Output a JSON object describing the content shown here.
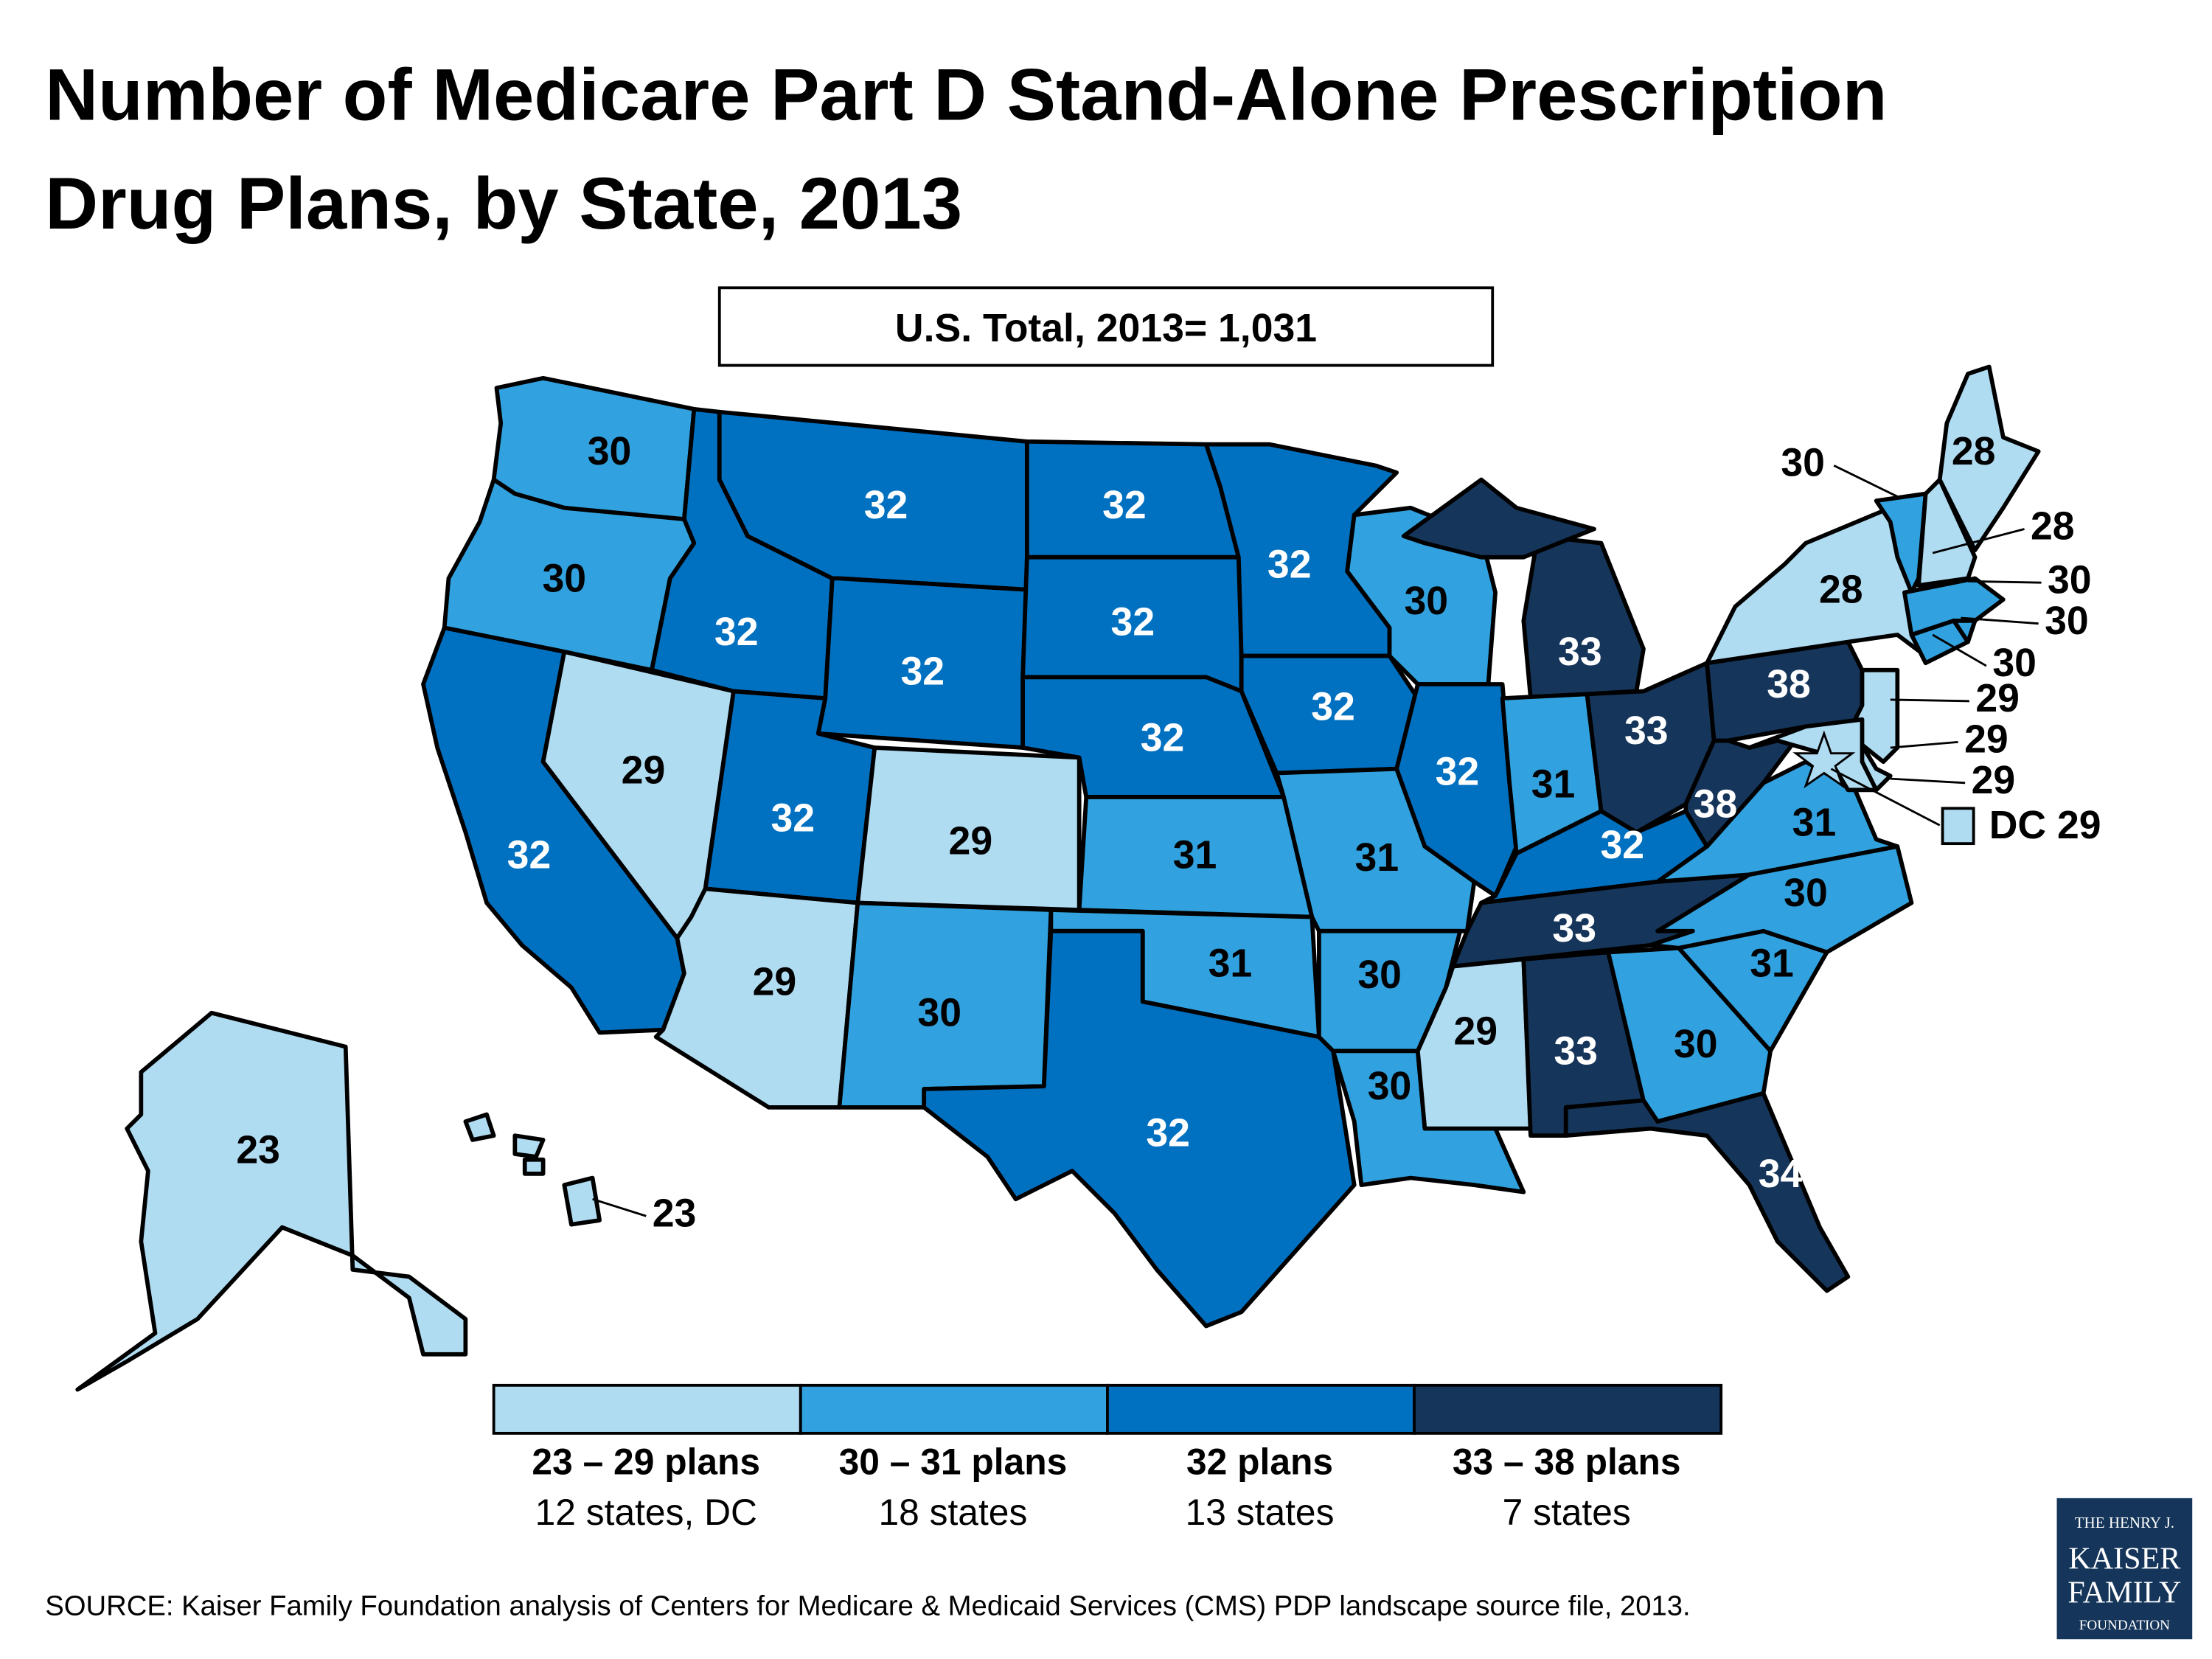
{
  "title_line1": "Number of Medicare Part D Stand-Alone Prescription",
  "title_line2": "Drug Plans, by State, 2013",
  "total_box": "U.S. Total, 2013= 1,031",
  "source": "SOURCE: Kaiser Family Foundation analysis of Centers for Medicare & Medicaid Services (CMS) PDP landscape source file, 2013.",
  "logo": {
    "line1": "THE HENRY J.",
    "line2": "KAISER",
    "line3": "FAMILY",
    "line4": "FOUNDATION",
    "color": "#15355a"
  },
  "colors": {
    "c23_29": "#b0dcf2",
    "c30_31": "#31a2df",
    "c32": "#0070c0",
    "c33_38": "#15355a"
  },
  "legend": [
    {
      "range": "23 – 29 plans",
      "count": "12 states, DC",
      "color": "#b0dcf2"
    },
    {
      "range": "30 – 31 plans",
      "count": "18 states",
      "color": "#31a2df"
    },
    {
      "range": "32 plans",
      "count": "13 states",
      "color": "#0070c0"
    },
    {
      "range": "33 – 38 plans",
      "count": "7 states",
      "color": "#15355a"
    }
  ],
  "dc_label": "DC 29",
  "chart_data": {
    "type": "choropleth",
    "title": "Number of Medicare Part D Stand-Alone Prescription Drug Plans, by State, 2013",
    "total": 1031,
    "states": [
      {
        "state": "WA",
        "value": 30
      },
      {
        "state": "OR",
        "value": 30
      },
      {
        "state": "CA",
        "value": 32
      },
      {
        "state": "NV",
        "value": 29
      },
      {
        "state": "ID",
        "value": 32
      },
      {
        "state": "MT",
        "value": 32
      },
      {
        "state": "WY",
        "value": 32
      },
      {
        "state": "UT",
        "value": 32
      },
      {
        "state": "CO",
        "value": 29
      },
      {
        "state": "AZ",
        "value": 29
      },
      {
        "state": "NM",
        "value": 30
      },
      {
        "state": "ND",
        "value": 32
      },
      {
        "state": "SD",
        "value": 32
      },
      {
        "state": "NE",
        "value": 32
      },
      {
        "state": "KS",
        "value": 31
      },
      {
        "state": "OK",
        "value": 31
      },
      {
        "state": "TX",
        "value": 32
      },
      {
        "state": "MN",
        "value": 32
      },
      {
        "state": "IA",
        "value": 32
      },
      {
        "state": "MO",
        "value": 31
      },
      {
        "state": "AR",
        "value": 30
      },
      {
        "state": "LA",
        "value": 30
      },
      {
        "state": "WI",
        "value": 30
      },
      {
        "state": "IL",
        "value": 32
      },
      {
        "state": "MI",
        "value": 33
      },
      {
        "state": "IN",
        "value": 31
      },
      {
        "state": "OH",
        "value": 33
      },
      {
        "state": "KY",
        "value": 32
      },
      {
        "state": "TN",
        "value": 33
      },
      {
        "state": "MS",
        "value": 29
      },
      {
        "state": "AL",
        "value": 33
      },
      {
        "state": "GA",
        "value": 30
      },
      {
        "state": "FL",
        "value": 34
      },
      {
        "state": "SC",
        "value": 31
      },
      {
        "state": "NC",
        "value": 30
      },
      {
        "state": "VA",
        "value": 31
      },
      {
        "state": "WV",
        "value": 38
      },
      {
        "state": "PA",
        "value": 38
      },
      {
        "state": "NY",
        "value": 28
      },
      {
        "state": "VT",
        "value": 30
      },
      {
        "state": "NH",
        "value": 28
      },
      {
        "state": "ME",
        "value": 28
      },
      {
        "state": "MA",
        "value": 30
      },
      {
        "state": "CT",
        "value": 30
      },
      {
        "state": "RI",
        "value": 30
      },
      {
        "state": "NJ",
        "value": 29
      },
      {
        "state": "DE",
        "value": 29
      },
      {
        "state": "MD",
        "value": 29
      },
      {
        "state": "DC",
        "value": 29
      },
      {
        "state": "AK",
        "value": 23
      },
      {
        "state": "HI",
        "value": 23
      }
    ]
  }
}
